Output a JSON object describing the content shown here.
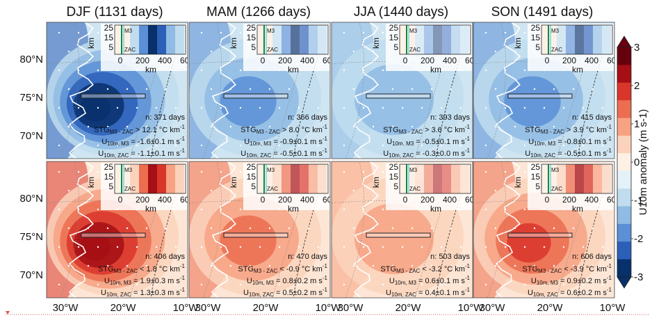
{
  "chart_data": {
    "type": "heatmap",
    "colorbar": {
      "label": "U10m anomaly (m s-1)",
      "ticks": [
        "3",
        "2",
        "1",
        "0",
        "-1",
        "-2",
        "-3"
      ],
      "range": [
        -3,
        3
      ],
      "colors": [
        "#08306b",
        "#2c5fb8",
        "#5b8fd6",
        "#8fbbe4",
        "#c0ddef",
        "#e4f1f8",
        "#fdf1e6",
        "#fbd3bc",
        "#f7a282",
        "#ec6d4f",
        "#d8362b",
        "#a50f15",
        "#67000d"
      ]
    },
    "columns": [
      "DJF (1131 days)",
      "MAM (1266 days)",
      "JJA (1440 days)",
      "SON (1491 days)"
    ],
    "x_ticks": [
      "30°W",
      "20°W",
      "10°W"
    ],
    "y_ticks": [
      "80°N",
      "75°N",
      "70°N"
    ],
    "inset": {
      "y_label": "km",
      "y_ticks": [
        "25",
        "15",
        "5"
      ],
      "x_label": "km",
      "x_ticks": [
        "0",
        "200",
        "400",
        "600"
      ],
      "labels": [
        "M3",
        "ZAC"
      ]
    },
    "panels": [
      {
        "season": "DJF",
        "row": 0,
        "n": "n: 371 days",
        "stg": "STG",
        "stg_sub": "M3 - ZAC",
        "stg_val": " > 12.1 °C km",
        "u_m3": "-1.6±0.1 m s",
        "u_zac": "-1.1±0.1 m s",
        "anomaly_sign": -1,
        "intensity": 3
      },
      {
        "season": "MAM",
        "row": 0,
        "n": "n: 366 days",
        "stg": "STG",
        "stg_sub": "M3 - ZAC",
        "stg_val": " > 8.0 °C km",
        "u_m3": "-0.9±0.1 m s",
        "u_zac": "-0.5±0.1 m s",
        "anomaly_sign": -1,
        "intensity": 1.6
      },
      {
        "season": "JJA",
        "row": 0,
        "n": "n: 393 days",
        "stg": "STG",
        "stg_sub": "M3 - ZAC",
        "stg_val": " > 3.6 °C km",
        "u_m3": "-0.5±0.1 m s",
        "u_zac": "-0.3±0.0 m s",
        "anomaly_sign": -1,
        "intensity": 0.8
      },
      {
        "season": "SON",
        "row": 0,
        "n": "n: 415 days",
        "stg": "STG",
        "stg_sub": "M3 - ZAC",
        "stg_val": " > 3.9 °C km",
        "u_m3": "-0.8±0.1 m s",
        "u_zac": "-0.5±0.1 m s",
        "anomaly_sign": -1,
        "intensity": 1.5
      },
      {
        "season": "DJF",
        "row": 1,
        "n": "n: 406 days",
        "stg": "STG",
        "stg_sub": "M3 - ZAC",
        "stg_val": " < 1.8 °C km",
        "u_m3": "1.9±0.3 m s",
        "u_zac": "1.3±0.3 m s",
        "anomaly_sign": 1,
        "intensity": 3
      },
      {
        "season": "MAM",
        "row": 1,
        "n": "n: 470 days",
        "stg": "STG",
        "stg_sub": "M3 - ZAC",
        "stg_val": " < -0.9 °C km",
        "u_m3": "0.8±0.2 m s",
        "u_zac": "0.5±0.2 m s",
        "anomaly_sign": 1,
        "intensity": 1.7
      },
      {
        "season": "JJA",
        "row": 1,
        "n": "n: 503 days",
        "stg": "STG",
        "stg_sub": "M3 - ZAC",
        "stg_val": " < -3.2 °C km",
        "u_m3": "0.6±0.1 m s",
        "u_zac": "0.4±0.1 m s",
        "anomaly_sign": 1,
        "intensity": 1.1
      },
      {
        "season": "SON",
        "row": 1,
        "n": "n: 606 days",
        "stg": "STG",
        "stg_sub": "M3 - ZAC",
        "stg_val": " < -3.9 °C km",
        "u_m3": "0.9±0.2 m s",
        "u_zac": "0.6±0.2 m s",
        "anomaly_sign": 1,
        "intensity": 2
      }
    ],
    "u_prefix": "U",
    "u_sub_m3": "10m, M3",
    "u_sub_zac": "10m, ZAC",
    "unit_sup": "-1"
  }
}
